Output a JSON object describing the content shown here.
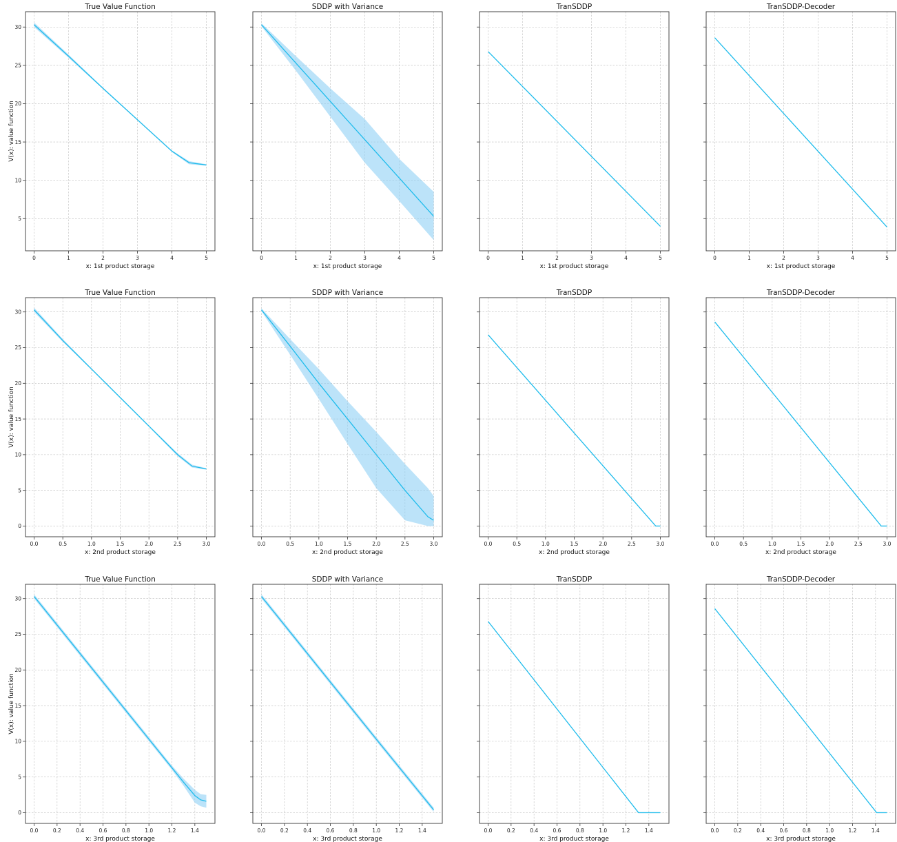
{
  "colors": {
    "line": "#1fbcec",
    "band": "#8fd0f5"
  },
  "chart_data": [
    {
      "type": "line",
      "title": "True Value Function",
      "xlabel": "x: 1st product storage",
      "ylabel": "V(x): value function",
      "xlim": [
        -0.25,
        5.25
      ],
      "ylim": [
        0.8,
        32
      ],
      "xticks": [
        0,
        1,
        2,
        3,
        4,
        5
      ],
      "yticks": [
        5,
        10,
        15,
        20,
        25,
        30
      ],
      "series": [
        {
          "x": [
            0,
            1,
            2,
            3,
            4,
            4.5,
            5
          ],
          "y": [
            30.3,
            26.2,
            22,
            17.9,
            13.8,
            12.3,
            12.0
          ],
          "lower": [
            30.0,
            26.0,
            21.9,
            17.8,
            13.7,
            12.1,
            11.9
          ],
          "upper": [
            30.6,
            26.4,
            22.1,
            18.0,
            13.9,
            12.5,
            12.1
          ]
        }
      ],
      "grid": true
    },
    {
      "type": "line",
      "title": "SDDP with Variance",
      "xlabel": "x: 1st product storage",
      "ylabel": "",
      "xlim": [
        -0.25,
        5.25
      ],
      "ylim": [
        0.8,
        32
      ],
      "xticks": [
        0,
        1,
        2,
        3,
        4,
        5
      ],
      "yticks": [
        5,
        10,
        15,
        20,
        25,
        30
      ],
      "series": [
        {
          "x": [
            0,
            1,
            2,
            3,
            4,
            5
          ],
          "y": [
            30.3,
            25.3,
            20.3,
            15.3,
            10.3,
            5.3
          ],
          "lower": [
            30.1,
            24.3,
            18.3,
            12.3,
            7.3,
            2.2
          ],
          "upper": [
            30.5,
            26.2,
            22.0,
            18.0,
            12.8,
            8.5
          ]
        }
      ],
      "grid": true
    },
    {
      "type": "line",
      "title": "TranSDDP",
      "xlabel": "x: 1st product storage",
      "ylabel": "",
      "xlim": [
        -0.25,
        5.25
      ],
      "ylim": [
        0.8,
        32
      ],
      "xticks": [
        0,
        1,
        2,
        3,
        4,
        5
      ],
      "yticks": [
        5,
        10,
        15,
        20,
        25,
        30
      ],
      "series": [
        {
          "x": [
            0,
            5
          ],
          "y": [
            26.8,
            4.0
          ]
        }
      ],
      "grid": true
    },
    {
      "type": "line",
      "title": "TranSDDP-Decoder",
      "xlabel": "x: 1st product storage",
      "ylabel": "",
      "xlim": [
        -0.25,
        5.25
      ],
      "ylim": [
        0.8,
        32
      ],
      "xticks": [
        0,
        1,
        2,
        3,
        4,
        5
      ],
      "yticks": [
        5,
        10,
        15,
        20,
        25,
        30
      ],
      "series": [
        {
          "x": [
            0,
            5
          ],
          "y": [
            28.6,
            3.9
          ]
        }
      ],
      "grid": true
    },
    {
      "type": "line",
      "title": "True Value Function",
      "xlabel": "x: 2nd product storage",
      "ylabel": "V(x): value function",
      "xlim": [
        -0.15,
        3.15
      ],
      "ylim": [
        -1.5,
        32
      ],
      "xticks": [
        0.0,
        0.5,
        1.0,
        1.5,
        2.0,
        2.5,
        3.0
      ],
      "yticks": [
        0,
        5,
        10,
        15,
        20,
        25,
        30
      ],
      "series": [
        {
          "x": [
            0,
            0.5,
            1,
            1.5,
            2,
            2.5,
            2.75,
            3
          ],
          "y": [
            30.3,
            26.0,
            22.0,
            18.0,
            14.0,
            10.0,
            8.4,
            8.0
          ],
          "lower": [
            30.0,
            25.8,
            21.9,
            17.9,
            13.9,
            9.8,
            8.2,
            7.9
          ],
          "upper": [
            30.6,
            26.2,
            22.1,
            18.1,
            14.1,
            10.2,
            8.6,
            8.1
          ]
        }
      ],
      "grid": true
    },
    {
      "type": "line",
      "title": "SDDP with Variance",
      "xlabel": "x: 2nd product storage",
      "ylabel": "",
      "xlim": [
        -0.15,
        3.15
      ],
      "ylim": [
        -1.5,
        32
      ],
      "xticks": [
        0.0,
        0.5,
        1.0,
        1.5,
        2.0,
        2.5,
        3.0
      ],
      "yticks": [
        0,
        5,
        10,
        15,
        20,
        25,
        30
      ],
      "series": [
        {
          "x": [
            0,
            0.5,
            1,
            1.5,
            2,
            2.5,
            2.9,
            3
          ],
          "y": [
            30.3,
            25.2,
            20.0,
            15.0,
            10.0,
            5.0,
            1.3,
            0.8
          ],
          "lower": [
            30.1,
            24.0,
            17.8,
            11.5,
            5.3,
            0.8,
            0.0,
            0.0
          ],
          "upper": [
            30.5,
            26.2,
            22.0,
            17.5,
            13.2,
            8.7,
            5.3,
            4.2
          ]
        }
      ],
      "grid": true
    },
    {
      "type": "line",
      "title": "TranSDDP",
      "xlabel": "x: 2nd product storage",
      "ylabel": "",
      "xlim": [
        -0.15,
        3.15
      ],
      "ylim": [
        -1.5,
        32
      ],
      "xticks": [
        0.0,
        0.5,
        1.0,
        1.5,
        2.0,
        2.5,
        3.0
      ],
      "yticks": [
        0,
        5,
        10,
        15,
        20,
        25,
        30
      ],
      "series": [
        {
          "x": [
            0,
            2.92,
            3.0
          ],
          "y": [
            26.8,
            0.0,
            0.0
          ]
        }
      ],
      "grid": true
    },
    {
      "type": "line",
      "title": "TranSDDP-Decoder",
      "xlabel": "x: 2nd product storage",
      "ylabel": "",
      "xlim": [
        -0.15,
        3.15
      ],
      "ylim": [
        -1.5,
        32
      ],
      "xticks": [
        0.0,
        0.5,
        1.0,
        1.5,
        2.0,
        2.5,
        3.0
      ],
      "yticks": [
        0,
        5,
        10,
        15,
        20,
        25,
        30
      ],
      "series": [
        {
          "x": [
            0,
            2.9,
            3.0
          ],
          "y": [
            28.6,
            0.0,
            0.0
          ]
        }
      ],
      "grid": true
    },
    {
      "type": "line",
      "title": "True Value Function",
      "xlabel": "x: 3rd product storage",
      "ylabel": "V(x): value function",
      "xlim": [
        -0.075,
        1.575
      ],
      "ylim": [
        -1.5,
        32
      ],
      "xticks": [
        0.0,
        0.2,
        0.4,
        0.6,
        0.8,
        1.0,
        1.2,
        1.4
      ],
      "yticks": [
        0,
        5,
        10,
        15,
        20,
        25,
        30
      ],
      "series": [
        {
          "x": [
            0,
            0.2,
            0.4,
            0.6,
            0.8,
            1.0,
            1.2,
            1.3,
            1.4,
            1.45,
            1.5
          ],
          "y": [
            30.3,
            26.3,
            22.3,
            18.3,
            14.3,
            10.3,
            6.3,
            4.3,
            2.4,
            1.8,
            1.6
          ],
          "lower": [
            30.0,
            26.0,
            22.0,
            18.0,
            14.0,
            10.0,
            6.0,
            3.8,
            1.4,
            0.9,
            0.7
          ],
          "upper": [
            30.6,
            26.6,
            22.6,
            18.6,
            14.6,
            10.6,
            6.6,
            4.8,
            3.2,
            2.6,
            2.5
          ]
        }
      ],
      "grid": true
    },
    {
      "type": "line",
      "title": "SDDP with Variance",
      "xlabel": "x: 3rd product storage",
      "ylabel": "",
      "xlim": [
        -0.075,
        1.575
      ],
      "ylim": [
        -1.5,
        32
      ],
      "xticks": [
        0.0,
        0.2,
        0.4,
        0.6,
        0.8,
        1.0,
        1.2,
        1.4
      ],
      "yticks": [
        0,
        5,
        10,
        15,
        20,
        25,
        30
      ],
      "series": [
        {
          "x": [
            0,
            0.5,
            1.0,
            1.5
          ],
          "y": [
            30.3,
            20.3,
            10.3,
            0.4
          ],
          "lower": [
            30.0,
            20.0,
            10.0,
            0.1
          ],
          "upper": [
            30.6,
            20.6,
            10.6,
            0.7
          ]
        }
      ],
      "grid": true
    },
    {
      "type": "line",
      "title": "TranSDDP",
      "xlabel": "x: 3rd product storage",
      "ylabel": "",
      "xlim": [
        -0.075,
        1.575
      ],
      "ylim": [
        -1.5,
        32
      ],
      "xticks": [
        0.0,
        0.2,
        0.4,
        0.6,
        0.8,
        1.0,
        1.2,
        1.4
      ],
      "yticks": [
        0,
        5,
        10,
        15,
        20,
        25,
        30
      ],
      "series": [
        {
          "x": [
            0,
            1.31,
            1.5
          ],
          "y": [
            26.8,
            0.0,
            0.0
          ]
        }
      ],
      "grid": true
    },
    {
      "type": "line",
      "title": "TranSDDP-Decoder",
      "xlabel": "x: 3rd product storage",
      "ylabel": "",
      "xlim": [
        -0.075,
        1.575
      ],
      "ylim": [
        -1.5,
        32
      ],
      "xticks": [
        0.0,
        0.2,
        0.4,
        0.6,
        0.8,
        1.0,
        1.2,
        1.4
      ],
      "yticks": [
        0,
        5,
        10,
        15,
        20,
        25,
        30
      ],
      "series": [
        {
          "x": [
            0,
            1.41,
            1.5
          ],
          "y": [
            28.6,
            0.0,
            0.0
          ]
        }
      ],
      "grid": true
    }
  ]
}
